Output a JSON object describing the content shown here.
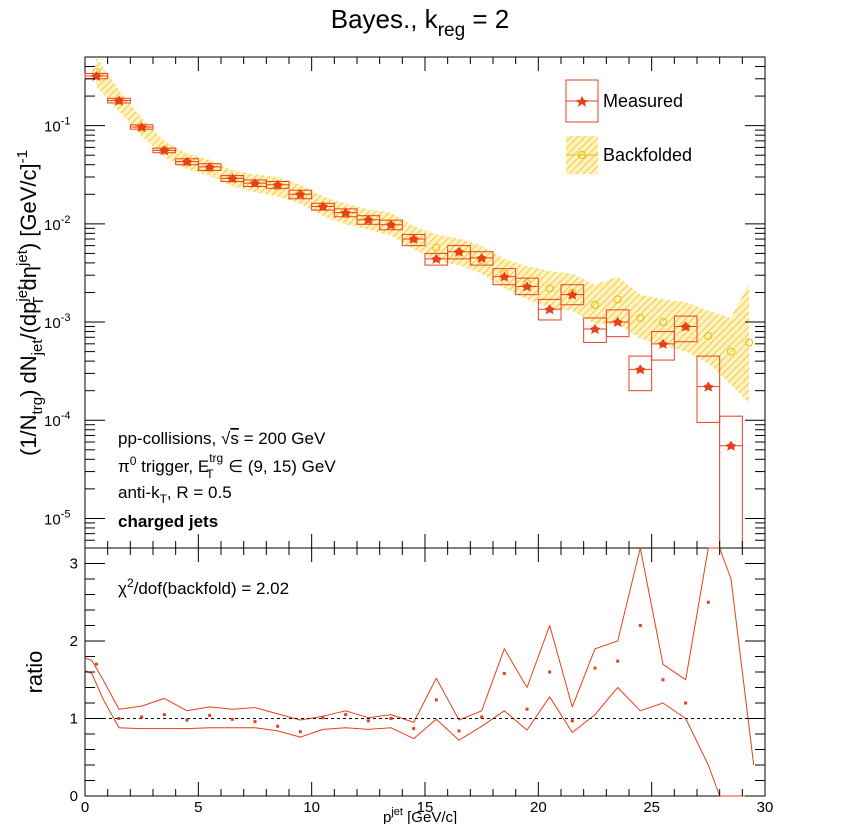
{
  "chart_data": [
    {
      "panel": "spectrum",
      "type": "scatter",
      "title": "Bayes., k_reg = 2",
      "title_parts": {
        "main": "Bayes., k",
        "sub": "reg",
        "tail": " = 2"
      },
      "ylabel": "(1/N_trg) dN_jet/(dp_T^jet dη^jet) [GeV/c]^-1",
      "xlim": [
        0,
        30
      ],
      "ylim": [
        5e-06,
        0.5
      ],
      "yscale": "log",
      "ytick_labels": [
        {
          "base": "10",
          "exp": "-1",
          "value": 0.1
        },
        {
          "base": "10",
          "exp": "-2",
          "value": 0.01
        },
        {
          "base": "10",
          "exp": "-3",
          "value": 0.001
        },
        {
          "base": "10",
          "exp": "-4",
          "value": 0.0001
        },
        {
          "base": "10",
          "exp": "-5",
          "value": 1e-05
        }
      ],
      "legend": {
        "position": "top-right",
        "entries": [
          "Measured",
          "Backfolded"
        ]
      },
      "annotations": [
        "pp-collisions, √s = 200 GeV",
        "π0 trigger, E_T^trg ∈ (9, 15) GeV",
        "anti-k_T, R = 0.5",
        "charged jets"
      ],
      "annotation_parts": {
        "l1a": "pp-collisions, ",
        "l1b": "s",
        "l1c": " = 200 GeV",
        "l2a": "π",
        "l2b": "0",
        "l2c": " trigger, E",
        "l2d": "trg",
        "l2e": "T",
        "l2f": " ∈ (9, 15) GeV",
        "l3a": "anti-k",
        "l3b": "T",
        "l3c": ", R = 0.5",
        "l4": "charged jets"
      },
      "series": [
        {
          "name": "Measured",
          "color": "#e8401c",
          "x": [
            0.5,
            1.5,
            2.5,
            3.5,
            4.5,
            5.5,
            6.5,
            7.5,
            8.5,
            9.5,
            10.5,
            11.5,
            12.5,
            13.5,
            14.5,
            15.5,
            16.5,
            17.5,
            18.5,
            19.5,
            20.5,
            21.5,
            22.5,
            23.5,
            24.5,
            25.5,
            26.5,
            27.5,
            28.5
          ],
          "y": [
            0.32,
            0.18,
            0.097,
            0.056,
            0.043,
            0.038,
            0.029,
            0.026,
            0.025,
            0.02,
            0.015,
            0.013,
            0.011,
            0.0098,
            0.007,
            0.0044,
            0.0052,
            0.0045,
            0.0029,
            0.0023,
            0.00135,
            0.0019,
            0.00085,
            0.001,
            0.00033,
            0.0006,
            0.0009,
            0.00022,
            5.5e-05
          ],
          "sys_low": [
            0.3,
            0.17,
            0.092,
            0.053,
            0.04,
            0.035,
            0.027,
            0.024,
            0.023,
            0.018,
            0.0138,
            0.0118,
            0.0099,
            0.0087,
            0.006,
            0.0038,
            0.0044,
            0.0038,
            0.0024,
            0.0019,
            0.00105,
            0.0015,
            0.00062,
            0.00071,
            0.0002,
            0.00041,
            0.00063,
            9.5e-05,
            3e-06
          ],
          "sys_high": [
            0.34,
            0.19,
            0.102,
            0.059,
            0.046,
            0.041,
            0.031,
            0.028,
            0.027,
            0.022,
            0.0162,
            0.0142,
            0.0121,
            0.0109,
            0.0078,
            0.005,
            0.006,
            0.0052,
            0.0035,
            0.0028,
            0.0017,
            0.0024,
            0.0011,
            0.00133,
            0.00045,
            0.0008,
            0.00115,
            0.00045,
            0.00011
          ]
        },
        {
          "name": "Backfolded",
          "color": "#f0b800",
          "x": [
            0.5,
            1.5,
            2.5,
            3.5,
            4.5,
            5.5,
            6.5,
            7.5,
            8.5,
            9.5,
            10.5,
            11.5,
            12.5,
            13.5,
            14.5,
            15.5,
            16.5,
            17.5,
            18.5,
            19.5,
            20.5,
            21.5,
            22.5,
            23.5,
            24.5,
            25.5,
            26.5,
            27.5,
            28.5,
            29.3
          ],
          "y": [
            0.35,
            0.18,
            0.095,
            0.057,
            0.043,
            0.037,
            0.029,
            0.026,
            0.024,
            0.02,
            0.015,
            0.0125,
            0.011,
            0.0098,
            0.0072,
            0.0057,
            0.0052,
            0.0043,
            0.0031,
            0.0025,
            0.0022,
            0.002,
            0.0015,
            0.0017,
            0.0011,
            0.001,
            0.0009,
            0.00072,
            0.0005,
            0.00062
          ],
          "band_low": [
            0.25,
            0.14,
            0.078,
            0.048,
            0.036,
            0.031,
            0.024,
            0.021,
            0.019,
            0.016,
            0.012,
            0.0099,
            0.0087,
            0.0076,
            0.0055,
            0.0042,
            0.0038,
            0.0031,
            0.0022,
            0.0017,
            0.0014,
            0.0013,
            0.00095,
            0.00095,
            0.00068,
            0.00058,
            0.0005,
            0.00038,
            0.00023,
            0.00015
          ],
          "band_high": [
            0.52,
            0.23,
            0.12,
            0.07,
            0.052,
            0.045,
            0.035,
            0.032,
            0.03,
            0.025,
            0.019,
            0.016,
            0.014,
            0.013,
            0.0095,
            0.0078,
            0.0071,
            0.006,
            0.0044,
            0.0037,
            0.0033,
            0.0031,
            0.0024,
            0.0029,
            0.0019,
            0.0017,
            0.0016,
            0.0013,
            0.0011,
            0.0025
          ]
        }
      ]
    },
    {
      "panel": "ratio",
      "type": "scatter",
      "xlabel": "p_T^jet [GeV/c]",
      "xlabel_parts": {
        "a": "p",
        "b": "jet",
        "c": "T",
        "d": " [GeV/c]"
      },
      "ylabel": "ratio",
      "xlim": [
        0,
        30
      ],
      "ylim": [
        0,
        3.2
      ],
      "x_tick_labels": [
        "0",
        "5",
        "10",
        "15",
        "20",
        "25",
        "30"
      ],
      "x_tick_values": [
        0,
        5,
        10,
        15,
        20,
        25,
        30
      ],
      "y_tick_labels": [
        "0",
        "1",
        "2",
        "3"
      ],
      "y_tick_values": [
        0,
        1,
        2,
        3
      ],
      "annotation": "χ²/dof(backfold) = 2.02",
      "annotation_parts": {
        "a": "χ",
        "b": "2",
        "c": "/dof(backfold) = 2.02"
      },
      "reference_line": 1,
      "series": [
        {
          "name": "ratio",
          "color": "#e8401c",
          "x": [
            0.5,
            1.5,
            2.5,
            3.5,
            4.5,
            5.5,
            6.5,
            7.5,
            8.5,
            9.5,
            10.5,
            11.5,
            12.5,
            13.5,
            14.5,
            15.5,
            16.5,
            17.5,
            18.5,
            19.5,
            20.5,
            21.5,
            22.5,
            23.5,
            24.5,
            25.5,
            26.5,
            27.5
          ],
          "y": [
            1.7,
            1.0,
            1.02,
            1.05,
            0.98,
            1.04,
            0.99,
            0.96,
            0.9,
            0.83,
            1.01,
            1.05,
            0.97,
            1.0,
            0.87,
            1.24,
            0.84,
            1.02,
            1.58,
            1.12,
            1.6,
            0.97,
            1.65,
            1.74,
            2.2,
            1.5,
            1.2,
            2.5
          ]
        }
      ],
      "envelope": {
        "x": [
          0,
          0.3,
          0.8,
          1.5,
          2.5,
          3.5,
          4.5,
          5.5,
          6.5,
          7.5,
          8.5,
          9.5,
          10.5,
          11.5,
          12.5,
          13.5,
          14.5,
          15.5,
          16.5,
          17.5,
          18.5,
          19.5,
          20.5,
          21.5,
          22.5,
          23.5,
          24.5,
          25.5,
          26.5,
          27.5,
          28,
          28.5,
          29.5
        ],
        "upper": [
          1.78,
          1.75,
          1.5,
          1.12,
          1.16,
          1.26,
          1.1,
          1.15,
          1.12,
          1.14,
          1.06,
          0.98,
          1.03,
          1.1,
          1.01,
          1.05,
          0.95,
          1.52,
          0.98,
          1.1,
          1.9,
          1.4,
          2.2,
          1.15,
          1.9,
          2.0,
          3.2,
          1.7,
          1.5,
          3.3,
          3.3,
          2.8,
          0.4
        ],
        "lower": [
          1.62,
          1.58,
          1.25,
          0.88,
          0.87,
          0.87,
          0.87,
          0.88,
          0.88,
          0.88,
          0.84,
          0.76,
          0.86,
          0.88,
          0.86,
          0.88,
          0.74,
          0.99,
          0.72,
          0.9,
          1.1,
          0.85,
          1.28,
          0.82,
          1.05,
          1.4,
          1.1,
          1.2,
          1.0,
          0.4,
          0.0,
          0.0,
          0.0
        ]
      }
    }
  ]
}
